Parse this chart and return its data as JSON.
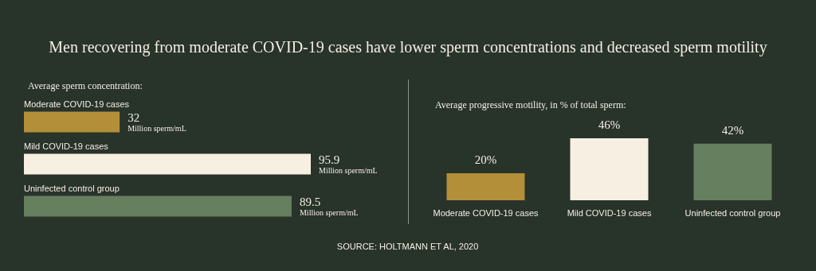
{
  "chart_data": [
    {
      "type": "bar",
      "orientation": "horizontal",
      "title": "Men recovering from moderate COVID-19 cases have lower sperm concentrations and decreased sperm motility",
      "subtitle": "Average sperm concentration:",
      "categories": [
        "Moderate COVID-19 cases",
        "Mild COVID-19 cases",
        "Uninfected control group"
      ],
      "values": [
        32,
        95.9,
        89.5
      ],
      "colors": [
        "#b38f3a",
        "#f8efe3",
        "#667f5f"
      ],
      "value_labels": [
        "32\nMillion sperm/mL",
        "95.9\nMillion sperm/mL",
        "89.5\nMillion sperm/mL"
      ]
    },
    {
      "type": "bar",
      "subtitle": "Average progressive motility, in % of total sperm:",
      "categories": [
        "Moderate COVID-19 cases",
        "Mild COVID-19 cases",
        "Uninfected control group"
      ],
      "values": [
        20,
        46,
        42
      ],
      "colors": [
        "#b38f3a",
        "#f8efe3",
        "#667f5f"
      ],
      "value_labels": [
        "20%",
        "46%",
        "42%"
      ],
      "annotations": [
        "SOURCE: HOLTMANN ET AL, 2020"
      ]
    }
  ]
}
